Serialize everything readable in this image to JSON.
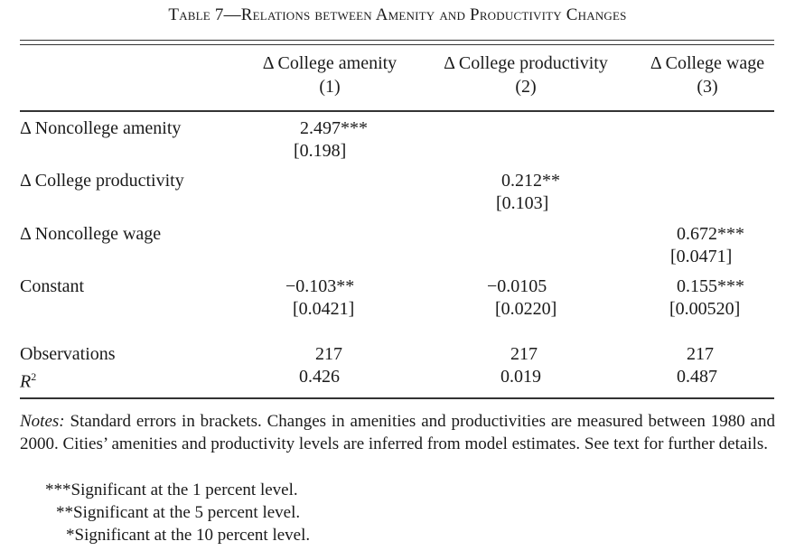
{
  "title_prefix": "T",
  "title_rest": "able 7—Relations between Amenity and Productivity Changes",
  "columns": [
    {
      "label": "Δ College amenity",
      "num": "(1)"
    },
    {
      "label": "Δ College productivity",
      "num": "(2)"
    },
    {
      "label": "Δ College wage",
      "num": "(3)"
    }
  ],
  "rows": {
    "noncollege_amenity": {
      "label": "Δ Noncollege amenity",
      "coef": "2.497***",
      "se": "[0.198]"
    },
    "college_productivity": {
      "label": "Δ College productivity",
      "coef": "0.212**",
      "se": "[0.103]"
    },
    "noncollege_wage": {
      "label": "Δ Noncollege wage",
      "coef": "0.672***",
      "se": "[0.0471]"
    },
    "constant": {
      "label": "Constant",
      "coefs": [
        "−0.103**",
        "−0.0105",
        "0.155***"
      ],
      "ses": [
        "[0.0421]",
        "[0.0220]",
        "[0.00520]"
      ]
    },
    "observations": {
      "label": "Observations",
      "values": [
        "217",
        "217",
        "217"
      ]
    },
    "r2": {
      "label": "R",
      "sup": "2",
      "values": [
        "0.426",
        "0.019",
        "0.487"
      ]
    }
  },
  "notes": {
    "lead": "Notes:",
    "text": " Standard errors in brackets. Changes in amenities and productivities are measured between 1980 and 2000. Cities’ amenities and productivity levels are inferred from model estimates. See text for further details.",
    "sig1_marker": "***",
    "sig1_text": "Significant at the 1 percent level.",
    "sig5_marker": "**",
    "sig5_text": "Significant at the 5 percent level.",
    "sig10_marker": "*",
    "sig10_text": "Significant at the 10 percent level."
  }
}
